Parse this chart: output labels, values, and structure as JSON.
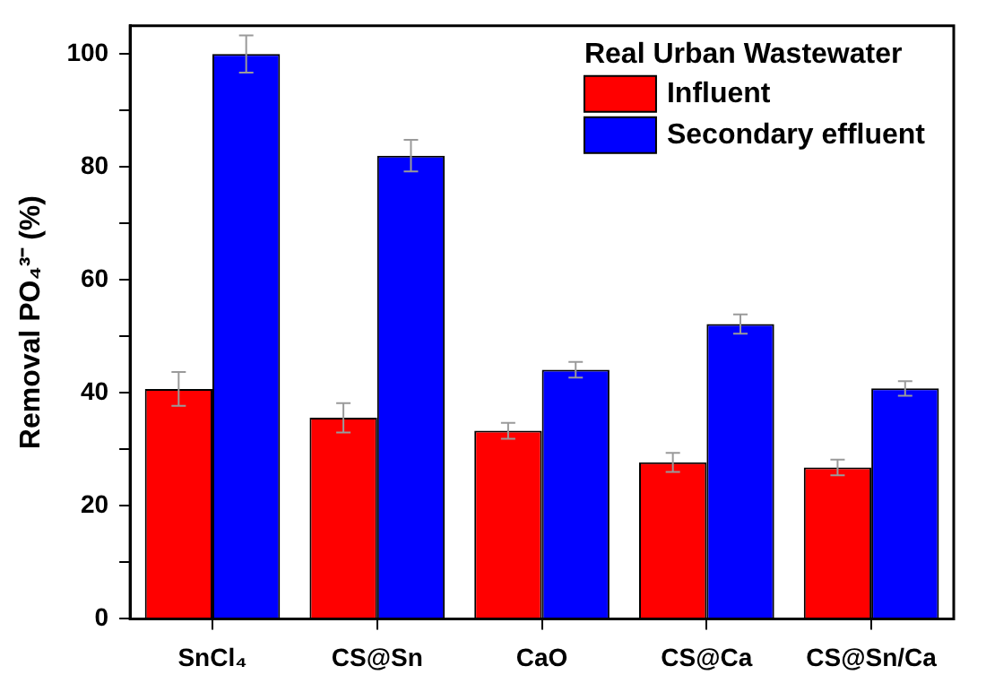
{
  "chart_data": {
    "type": "bar",
    "ylabel": "Removal PO₄³⁻ (%)",
    "legend_title": "Real Urban Wastewater",
    "legend": "top right",
    "categories": [
      "SnCl₄",
      "CS@Sn",
      "CaO",
      "CS@Ca",
      "CS@Sn/Ca"
    ],
    "series": [
      {
        "name": "Influent",
        "color": "#ff0000",
        "values": [
          40.7,
          35.6,
          33.3,
          27.7,
          26.8
        ],
        "errors": [
          3,
          2.6,
          1.4,
          1.7,
          1.4
        ]
      },
      {
        "name": "Secondary effluent",
        "color": "#0000ff",
        "values": [
          100,
          82,
          44.1,
          52.2,
          40.8
        ],
        "errors": [
          3.3,
          2.8,
          1.4,
          1.7,
          1.3
        ]
      }
    ],
    "ylim": [
      0,
      105
    ],
    "yticks": [
      0,
      {
        "value": 10,
        "label": null
      },
      20,
      {
        "value": 30,
        "label": null
      },
      40,
      {
        "value": 50,
        "label": null
      },
      60,
      {
        "value": 70,
        "label": null
      },
      80,
      {
        "value": 90,
        "label": null
      },
      100
    ],
    "grid": false
  }
}
